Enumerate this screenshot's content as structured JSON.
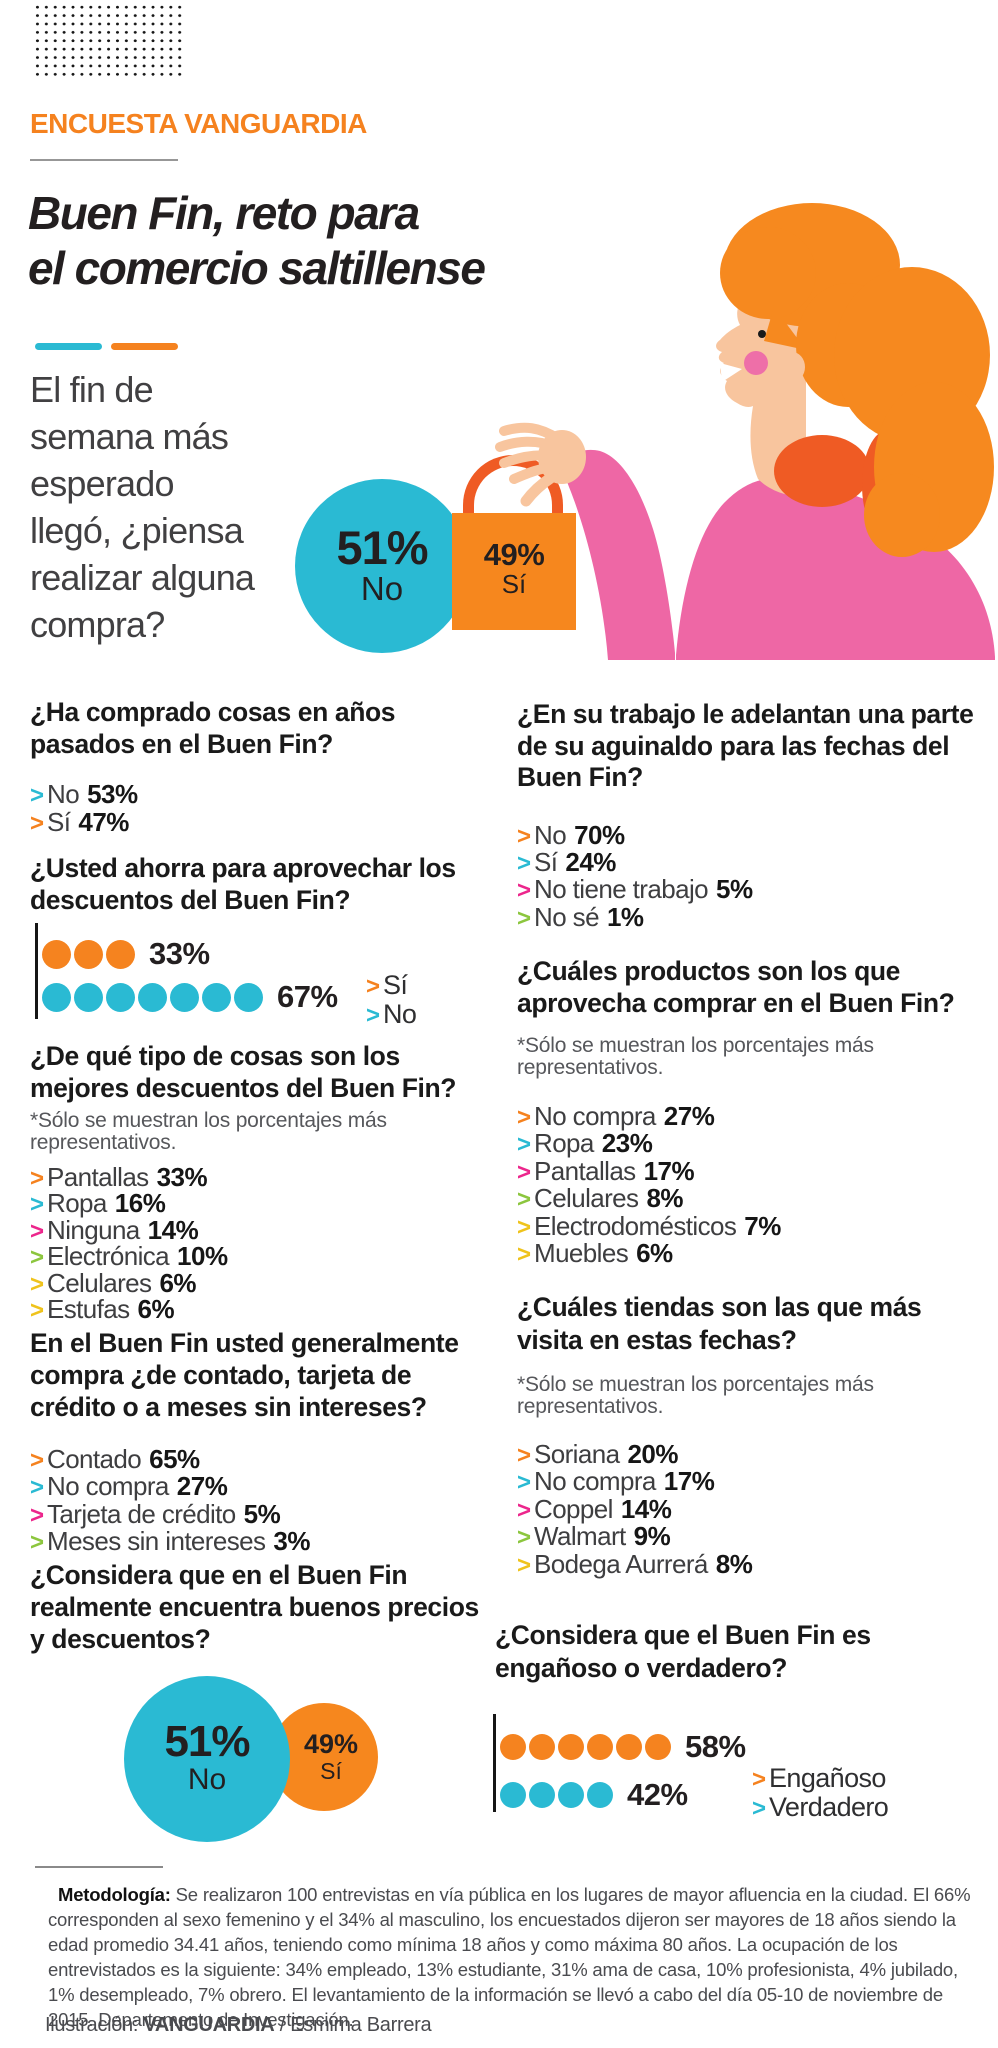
{
  "header": {
    "kicker": "ENCUESTA VANGUARDIA",
    "title": "Buen Fin, reto para el comercio saltillense",
    "title_lines": [
      "Buen Fin, reto para",
      "el comercio saltillense"
    ]
  },
  "intro": {
    "text": "El fin de semana más esperado llegó, ¿piensa realizar alguna compra?",
    "lines": [
      "El fin de",
      "semana más",
      "esperado",
      "llegó, ¿piensa",
      "realizar alguna",
      "compra?"
    ]
  },
  "hero": {
    "no_pct": "51%",
    "no_word": "No",
    "si_pct": "49%",
    "si_word": "Sí"
  },
  "left": {
    "q1": {
      "title": "¿Ha comprado cosas en años pasados en el Buen Fin?",
      "title_lines": [
        "¿Ha comprado cosas en años",
        "pasados en el Buen Fin?"
      ],
      "answers": [
        {
          "label": "No",
          "value": "53%",
          "color": "teal"
        },
        {
          "label": "Sí",
          "value": "47%",
          "color": "orange"
        }
      ]
    },
    "q2": {
      "title": "¿Usted ahorra para aprovechar los descuentos del Buen Fin?",
      "title_lines": [
        "¿Usted ahorra para aprovechar los",
        "descuentos del Buen Fin?"
      ]
    },
    "q3": {
      "title": "¿De qué tipo de cosas son los mejores descuentos del Buen Fin?",
      "title_lines": [
        "¿De qué  tipo de cosas son los",
        "mejores descuentos del Buen Fin?"
      ],
      "note": "*Sólo se muestran los porcentajes más representativos.",
      "note_lines": [
        "*Sólo se muestran los porcentajes más",
        "representativos."
      ],
      "answers": [
        {
          "label": "Pantallas",
          "value": "33%",
          "color": "orange"
        },
        {
          "label": "Ropa",
          "value": "16%",
          "color": "teal"
        },
        {
          "label": "Ninguna",
          "value": "14%",
          "color": "pink"
        },
        {
          "label": "Electrónica",
          "value": "10%",
          "color": "green"
        },
        {
          "label": "Celulares",
          "value": "6%",
          "color": "yellow"
        },
        {
          "label": "Estufas",
          "value": "6%",
          "color": "yellow"
        }
      ]
    },
    "q4": {
      "title": "En el Buen Fin usted generalmente compra ¿de contado, tarjeta de crédito o a meses sin intereses?",
      "title_lines": [
        "En el Buen Fin usted generalmente",
        "compra ¿de contado, tarjeta de",
        "crédito o a meses sin intereses?"
      ],
      "answers": [
        {
          "label": "Contado",
          "value": "65%",
          "color": "orange"
        },
        {
          "label": "No compra",
          "value": "27%",
          "color": "teal"
        },
        {
          "label": "Tarjeta de crédito",
          "value": "5%",
          "color": "pink"
        },
        {
          "label": "Meses sin intereses",
          "value": "3%",
          "color": "green"
        }
      ]
    },
    "q5": {
      "title": "¿Considera que en el Buen Fin realmente encuentra buenos precios y descuentos?",
      "title_lines": [
        "¿Considera que en el Buen Fin",
        "realmente encuentra buenos precios",
        "y descuentos?"
      ],
      "big_pct": "51%",
      "big_word": "No",
      "small_pct": "49%",
      "small_word": "Sí"
    }
  },
  "right": {
    "q1": {
      "title": "¿En su trabajo le adelantan una parte de su aguinaldo para las fechas del Buen Fin?",
      "title_lines": [
        "¿En su trabajo le adelantan una parte",
        "de su aguinaldo para las fechas del",
        "Buen Fin?"
      ],
      "answers": [
        {
          "label": "No",
          "value": "70%",
          "color": "orange"
        },
        {
          "label": "Sí",
          "value": "24%",
          "color": "teal"
        },
        {
          "label": "No tiene trabajo",
          "value": "5%",
          "color": "pink"
        },
        {
          "label": "No sé",
          "value": "1%",
          "color": "green"
        }
      ]
    },
    "q2": {
      "title": "¿Cuáles productos son los que aprovecha comprar en el Buen Fin?",
      "title_lines": [
        "¿Cuáles productos son los que",
        "aprovecha comprar en el Buen Fin?"
      ],
      "note": "*Sólo se muestran los porcentajes más representativos.",
      "note_lines": [
        "*Sólo se muestran los porcentajes más",
        "representativos."
      ],
      "answers": [
        {
          "label": "No compra",
          "value": "27%",
          "color": "orange"
        },
        {
          "label": "Ropa",
          "value": "23%",
          "color": "teal"
        },
        {
          "label": "Pantallas",
          "value": "17%",
          "color": "pink"
        },
        {
          "label": "Celulares",
          "value": "8%",
          "color": "green"
        },
        {
          "label": "Electrodomésticos",
          "value": "7%",
          "color": "yellow"
        },
        {
          "label": "Muebles",
          "value": "6%",
          "color": "yellow"
        }
      ]
    },
    "q3": {
      "title": "¿Cuáles tiendas son las que más visita en estas fechas?",
      "title_lines": [
        "¿Cuáles tiendas son las que más",
        "visita en estas fechas?"
      ],
      "note": "*Sólo se muestran los porcentajes más representativos.",
      "note_lines": [
        "*Sólo se muestran los porcentajes más",
        "representativos."
      ],
      "answers": [
        {
          "label": "Soriana",
          "value": "20%",
          "color": "orange"
        },
        {
          "label": "No compra",
          "value": "17%",
          "color": "teal"
        },
        {
          "label": "Coppel",
          "value": "14%",
          "color": "pink"
        },
        {
          "label": "Walmart",
          "value": "9%",
          "color": "green"
        },
        {
          "label": "Bodega Aurrerá",
          "value": "8%",
          "color": "yellow"
        }
      ]
    },
    "q4": {
      "title": "¿Considera que el Buen Fin es engañoso o verdadero?",
      "title_lines": [
        "¿Considera que el Buen Fin es",
        "engañoso o verdadero?"
      ]
    }
  },
  "footer": {
    "methodology_label": "Metodología:",
    "methodology_text": "Se realizaron 100 entrevistas en vía pública en los lugares de mayor afluencia en la ciudad. El 66% corresponden al sexo femenino y el 34% al masculino, los encuestados dijeron ser mayores de 18 años siendo la edad promedio 34.41 años, teniendo como mínima 18 años y como máxima 80 años. La ocupación de los entrevistados es la siguiente: 34% empleado, 13% estudiante, 31% ama de casa, 10% profesionista, 4% jubilado, 1% desempleado, 7% obrero. El levantamiento de la información se llevó a cabo del día 05-10 de noviembre de 2015. Departamento de Investigación.",
    "credit_prefix": "Ilustración: ",
    "credit_brand": "VANGUARDIA",
    "credit_suffix": " / Esmirna Barrera"
  },
  "colors": {
    "orange": "#F5821F",
    "teal": "#2ABAD3",
    "pink": "#EC268C",
    "green": "#8CC63E",
    "yellow": "#EFC31C",
    "bag_orange": "#F6871E",
    "handle_orange": "#EF5B24",
    "body_pink": "#EE67A5",
    "skin": "#F8C59E",
    "hair_orange": "#F6891F",
    "title_black": "#1A1A1A",
    "body_gray": "#414042"
  },
  "chart_data": [
    {
      "type": "pie",
      "id": "hero-piensa-compra",
      "question": "El fin de semana más esperado llegó, ¿piensa realizar alguna compra?",
      "categories": [
        "No",
        "Sí"
      ],
      "values": [
        51,
        49
      ],
      "value_labels": [
        "51%",
        "49%"
      ],
      "colors": [
        "#2ABAD3",
        "#F6871E"
      ]
    },
    {
      "type": "dot-bar",
      "id": "ahorra-para-descuentos",
      "question": "¿Usted ahorra para aprovechar los descuentos del Buen Fin?",
      "categories": [
        "Sí",
        "No"
      ],
      "values": [
        33,
        67
      ],
      "value_labels": [
        "33%",
        "67%"
      ],
      "dots": [
        3,
        7
      ],
      "colors": [
        "#F6871E",
        "#2ABAD3"
      ],
      "legend": [
        "Sí",
        "No"
      ],
      "legend_position": "right"
    },
    {
      "type": "pie",
      "id": "buenos-precios",
      "question": "¿Considera que en el Buen Fin realmente encuentra buenos precios y descuentos?",
      "categories": [
        "No",
        "Sí"
      ],
      "values": [
        51,
        49
      ],
      "value_labels": [
        "51%",
        "49%"
      ],
      "colors": [
        "#2ABAD3",
        "#F6871E"
      ]
    },
    {
      "type": "dot-bar",
      "id": "enganoso-o-verdadero",
      "question": "¿Considera que el Buen Fin es engañoso o verdadero?",
      "categories": [
        "Engañoso",
        "Verdadero"
      ],
      "values": [
        58,
        42
      ],
      "value_labels": [
        "58%",
        "42%"
      ],
      "dots": [
        6,
        4
      ],
      "colors": [
        "#F6871E",
        "#2ABAD3"
      ],
      "legend": [
        "Engañoso",
        "Verdadero"
      ],
      "legend_position": "right"
    },
    {
      "type": "bar",
      "id": "comprado-anos-pasados",
      "question": "¿Ha comprado cosas en años pasados en el Buen Fin?",
      "categories": [
        "No",
        "Sí"
      ],
      "values": [
        53,
        47
      ]
    },
    {
      "type": "bar",
      "id": "mejores-descuentos",
      "question": "¿De qué tipo de cosas son los mejores descuentos del Buen Fin?",
      "categories": [
        "Pantallas",
        "Ropa",
        "Ninguna",
        "Electrónica",
        "Celulares",
        "Estufas"
      ],
      "values": [
        33,
        16,
        14,
        10,
        6,
        6
      ]
    },
    {
      "type": "bar",
      "id": "forma-de-pago",
      "question": "En el Buen Fin usted generalmente compra ¿de contado, tarjeta de crédito o a meses sin intereses?",
      "categories": [
        "Contado",
        "No compra",
        "Tarjeta de crédito",
        "Meses sin intereses"
      ],
      "values": [
        65,
        27,
        5,
        3
      ]
    },
    {
      "type": "bar",
      "id": "adelanto-aguinaldo",
      "question": "¿En su trabajo le adelantan una parte de su aguinaldo para las fechas del Buen Fin?",
      "categories": [
        "No",
        "Sí",
        "No tiene trabajo",
        "No sé"
      ],
      "values": [
        70,
        24,
        5,
        1
      ]
    },
    {
      "type": "bar",
      "id": "productos-aprovecha",
      "question": "¿Cuáles productos son los que aprovecha comprar en el Buen Fin?",
      "categories": [
        "No compra",
        "Ropa",
        "Pantallas",
        "Celulares",
        "Electrodomésticos",
        "Muebles"
      ],
      "values": [
        27,
        23,
        17,
        8,
        7,
        6
      ]
    },
    {
      "type": "bar",
      "id": "tiendas-mas-visita",
      "question": "¿Cuáles tiendas son las que más visita en estas fechas?",
      "categories": [
        "Soriana",
        "No compra",
        "Coppel",
        "Walmart",
        "Bodega Aurrerá"
      ],
      "values": [
        20,
        17,
        14,
        9,
        8
      ]
    }
  ]
}
